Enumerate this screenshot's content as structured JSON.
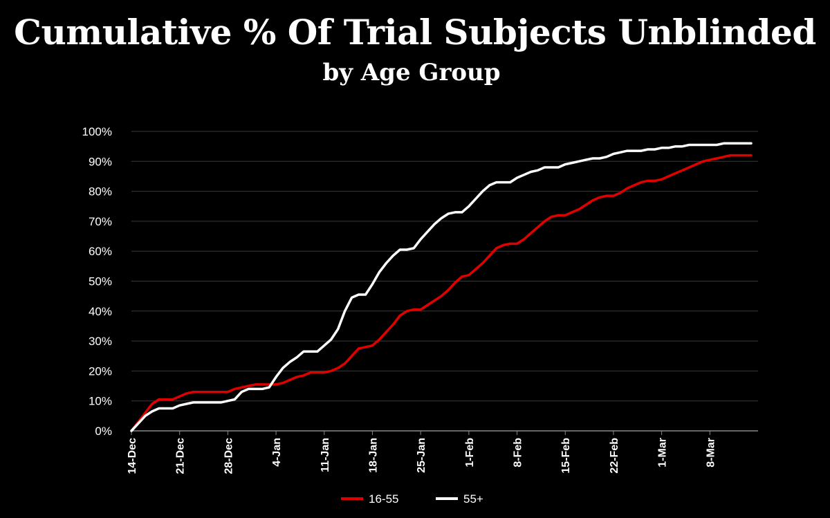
{
  "title": "Cumulative % Of Trial Subjects Unblinded",
  "subtitle": "by Age Group",
  "chart_data": {
    "type": "line",
    "title": "Cumulative % Of Trial Subjects Unblinded",
    "subtitle": "by Age Group",
    "xlabel": "",
    "ylabel": "",
    "x_tick_labels": [
      "14-Dec",
      "21-Dec",
      "28-Dec",
      "4-Jan",
      "11-Jan",
      "18-Jan",
      "25-Jan",
      "1-Feb",
      "8-Feb",
      "15-Feb",
      "22-Feb",
      "1-Mar",
      "8-Mar"
    ],
    "x_unit": "days from 14-Dec",
    "xlim": [
      0,
      91
    ],
    "y_tick_labels": [
      "0%",
      "10%",
      "20%",
      "30%",
      "40%",
      "50%",
      "60%",
      "70%",
      "80%",
      "90%",
      "100%"
    ],
    "ylim": [
      0,
      100
    ],
    "grid": "horizontal",
    "legend_position": "bottom",
    "series": [
      {
        "name": "16-55",
        "color": "#e00000",
        "x": [
          0,
          1,
          2,
          3,
          4,
          5,
          6,
          7,
          8,
          9,
          10,
          11,
          12,
          13,
          14,
          15,
          16,
          17,
          18,
          19,
          20,
          21,
          22,
          23,
          24,
          25,
          26,
          27,
          28,
          29,
          30,
          31,
          32,
          33,
          34,
          35,
          36,
          37,
          38,
          39,
          40,
          41,
          42,
          43,
          44,
          45,
          46,
          47,
          48,
          49,
          50,
          51,
          52,
          53,
          54,
          55,
          56,
          57,
          58,
          59,
          60,
          61,
          62,
          63,
          64,
          65,
          66,
          67,
          68,
          69,
          70,
          71,
          72,
          73,
          74,
          75,
          76,
          77,
          78,
          79,
          80,
          81,
          82,
          83,
          84,
          85,
          86,
          87,
          88,
          89,
          90
        ],
        "y": [
          0,
          3,
          6,
          9,
          10.5,
          10.5,
          10.5,
          11.5,
          12.5,
          13,
          13,
          13,
          13,
          13,
          13,
          14,
          14.5,
          15,
          15.5,
          15.5,
          15.5,
          15.5,
          16,
          17,
          18,
          18.5,
          19.5,
          19.5,
          19.5,
          20,
          21,
          22.5,
          25,
          27.5,
          28,
          28.5,
          30.5,
          33,
          35.5,
          38.5,
          40,
          40.5,
          40.5,
          42,
          43.5,
          45,
          47,
          49.5,
          51.5,
          52,
          54,
          56,
          58.5,
          61,
          62,
          62.5,
          62.5,
          64,
          66,
          68,
          70,
          71.5,
          72,
          72,
          73,
          74,
          75.5,
          77,
          78,
          78.5,
          78.5,
          79.5,
          81,
          82,
          83,
          83.5,
          83.5,
          84,
          85,
          86,
          87,
          88,
          89,
          90,
          90.5,
          91,
          91.5,
          92,
          92,
          92,
          92
        ]
      },
      {
        "name": "55+",
        "color": "#ffffff",
        "x": [
          0,
          1,
          2,
          3,
          4,
          5,
          6,
          7,
          8,
          9,
          10,
          11,
          12,
          13,
          14,
          15,
          16,
          17,
          18,
          19,
          20,
          21,
          22,
          23,
          24,
          25,
          26,
          27,
          28,
          29,
          30,
          31,
          32,
          33,
          34,
          35,
          36,
          37,
          38,
          39,
          40,
          41,
          42,
          43,
          44,
          45,
          46,
          47,
          48,
          49,
          50,
          51,
          52,
          53,
          54,
          55,
          56,
          57,
          58,
          59,
          60,
          61,
          62,
          63,
          64,
          65,
          66,
          67,
          68,
          69,
          70,
          71,
          72,
          73,
          74,
          75,
          76,
          77,
          78,
          79,
          80,
          81,
          82,
          83,
          84,
          85,
          86,
          87,
          88,
          89,
          90
        ],
        "y": [
          0,
          2.5,
          5,
          6.5,
          7.5,
          7.5,
          7.5,
          8.5,
          9,
          9.5,
          9.5,
          9.5,
          9.5,
          9.5,
          10,
          10.5,
          13,
          14,
          14,
          14,
          14.5,
          18,
          21,
          23,
          24.5,
          26.5,
          26.5,
          26.5,
          28.5,
          30.5,
          34,
          40,
          44.5,
          45.5,
          45.5,
          49,
          53,
          56,
          58.5,
          60.5,
          60.5,
          61,
          64,
          66.5,
          69,
          71,
          72.5,
          73,
          73,
          75,
          77.5,
          80,
          82,
          83,
          83,
          83,
          84.5,
          85.5,
          86.5,
          87,
          88,
          88,
          88,
          89,
          89.5,
          90,
          90.5,
          91,
          91,
          91.5,
          92.5,
          93,
          93.5,
          93.5,
          93.5,
          94,
          94,
          94.5,
          94.5,
          95,
          95,
          95.5,
          95.5,
          95.5,
          95.5,
          95.5,
          96,
          96,
          96,
          96,
          96
        ]
      }
    ]
  }
}
